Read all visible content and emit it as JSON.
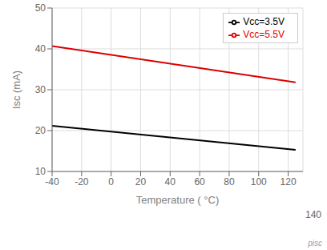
{
  "chart_data": {
    "type": "line",
    "xlabel": "Temperature ( °C)",
    "ylabel": "Isc (mA)",
    "x": [
      -40,
      125
    ],
    "series": [
      {
        "name": "Vcc=3.5V",
        "color": "#000000",
        "values": [
          21.2,
          15.3
        ]
      },
      {
        "name": "Vcc=5.5V",
        "color": "#dd0000",
        "values": [
          40.7,
          31.8
        ]
      }
    ],
    "xlim": [
      -40,
      130
    ],
    "ylim": [
      10,
      50
    ],
    "xticks": [
      -40,
      -20,
      0,
      20,
      40,
      60,
      80,
      100,
      120
    ],
    "yticks": [
      10,
      20,
      30,
      40,
      50
    ],
    "grid": true,
    "legend": "upper right",
    "annotations": [
      "140",
      "pisc"
    ]
  }
}
